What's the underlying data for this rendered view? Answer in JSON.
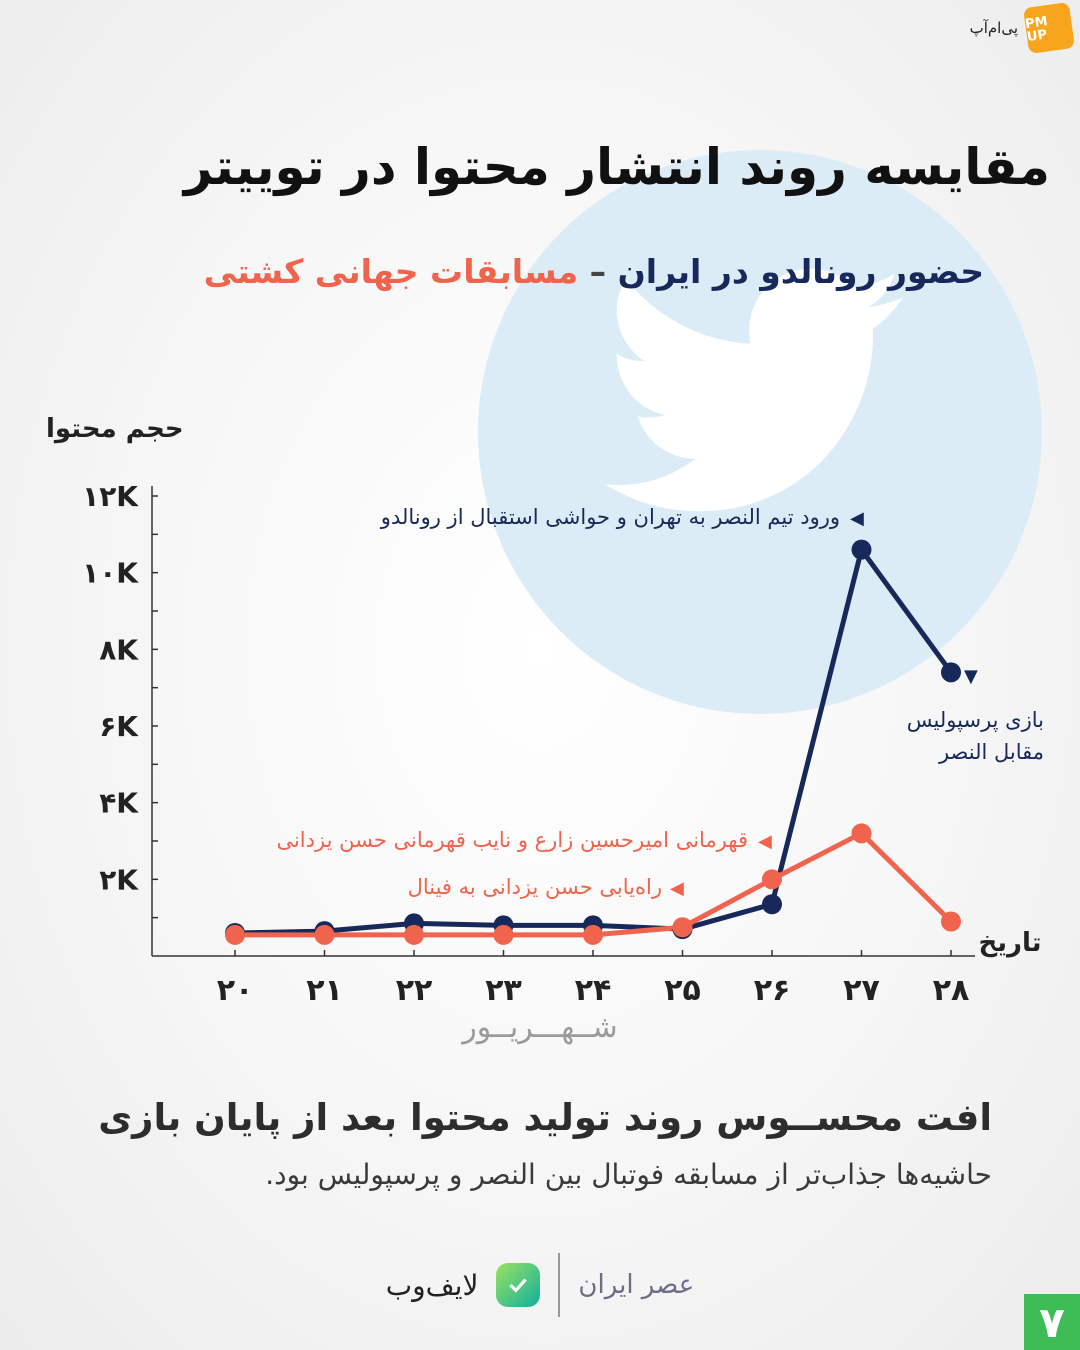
{
  "brand": {
    "publisher": "پی‌ام‌آپ",
    "badge": "PM UP"
  },
  "title": "مقایسه روند انتشار محتوا در توییتر",
  "subtitle": {
    "series_a": "حضور رونالدو در ایران",
    "separator": "–",
    "series_b": "مسابقات جهانی کشتی"
  },
  "colors": {
    "navy": "#16295a",
    "coral": "#f0634c",
    "twitter_circle": "#dcecf6"
  },
  "chart_data": {
    "type": "line",
    "ylabel": "حجم محتوا",
    "xlabel": "تاریخ",
    "x_group_label": "شــهـــریــور",
    "categories": [
      "۲۰",
      "۲۱",
      "۲۲",
      "۲۳",
      "۲۴",
      "۲۵",
      "۲۶",
      "۲۷",
      "۲۸"
    ],
    "y_ticks": [
      {
        "value": 2000,
        "label": "۲K"
      },
      {
        "value": 4000,
        "label": "۴K"
      },
      {
        "value": 6000,
        "label": "۶K"
      },
      {
        "value": 8000,
        "label": "۸K"
      },
      {
        "value": 10000,
        "label": "۱۰K"
      },
      {
        "value": 12000,
        "label": "۱۲K"
      }
    ],
    "ylim": [
      0,
      12000
    ],
    "series": [
      {
        "key": "ronaldo",
        "color": "#16295a",
        "values": [
          600,
          650,
          850,
          800,
          800,
          700,
          1350,
          10600,
          7400
        ]
      },
      {
        "key": "wrestling",
        "color": "#f0634c",
        "values": [
          550,
          550,
          550,
          550,
          550,
          750,
          2000,
          3200,
          900
        ]
      }
    ],
    "annotations": [
      {
        "series": "ronaldo",
        "text": "ورود تیم النصر به تهران و حواشی استقبال از رونالدو"
      },
      {
        "series": "ronaldo",
        "text": "بازی پرسپولیس مقابل النصر"
      },
      {
        "series": "wrestling",
        "text": "قهرمانی امیرحسین زارع و نایب قهرمانی حسن یزدانی"
      },
      {
        "series": "wrestling",
        "text": "راه‌یابی حسن یزدانی به فینال"
      }
    ],
    "grid": false,
    "legend": "none"
  },
  "conclusion": {
    "title": "افت محســوس روند تولید محتوا بعد از پایان بازی",
    "body": "حاشیه‌ها جذاب‌تر از مسابقه فوتبال بین النصر و پرسپولیس بود."
  },
  "footer": {
    "lifeweb": "لایف‌وب",
    "asriran": "عصر ایران"
  },
  "page_number": "۷"
}
